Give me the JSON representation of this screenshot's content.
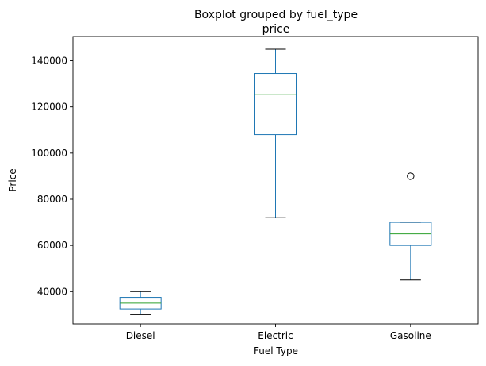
{
  "chart_data": {
    "type": "boxplot",
    "suptitle": "Boxplot grouped by fuel_type",
    "title": "price",
    "xlabel": "Fuel Type",
    "ylabel": "Price",
    "ylim": [
      26000,
      150500
    ],
    "yticks": [
      40000,
      60000,
      80000,
      100000,
      120000,
      140000
    ],
    "ytick_labels": [
      "40000",
      "60000",
      "80000",
      "100000",
      "120000",
      "140000"
    ],
    "grid": false,
    "categories": [
      "Diesel",
      "Electric",
      "Gasoline"
    ],
    "boxes": [
      {
        "category": "Diesel",
        "whisker_low": 30000,
        "q1": 32500,
        "median": 35000,
        "q3": 37500,
        "whisker_high": 40000,
        "outliers": []
      },
      {
        "category": "Electric",
        "whisker_low": 72000,
        "q1": 108000,
        "median": 125500,
        "q3": 134500,
        "whisker_high": 145000,
        "outliers": []
      },
      {
        "category": "Gasoline",
        "whisker_low": 45000,
        "q1": 60000,
        "median": 65000,
        "q3": 70000,
        "whisker_high": 70000,
        "outliers": [
          90000
        ]
      }
    ],
    "colors": {
      "box": "#1f77b4",
      "median": "#2ca02c",
      "whisker_cap": "#000000",
      "outlier": "#000000"
    }
  }
}
